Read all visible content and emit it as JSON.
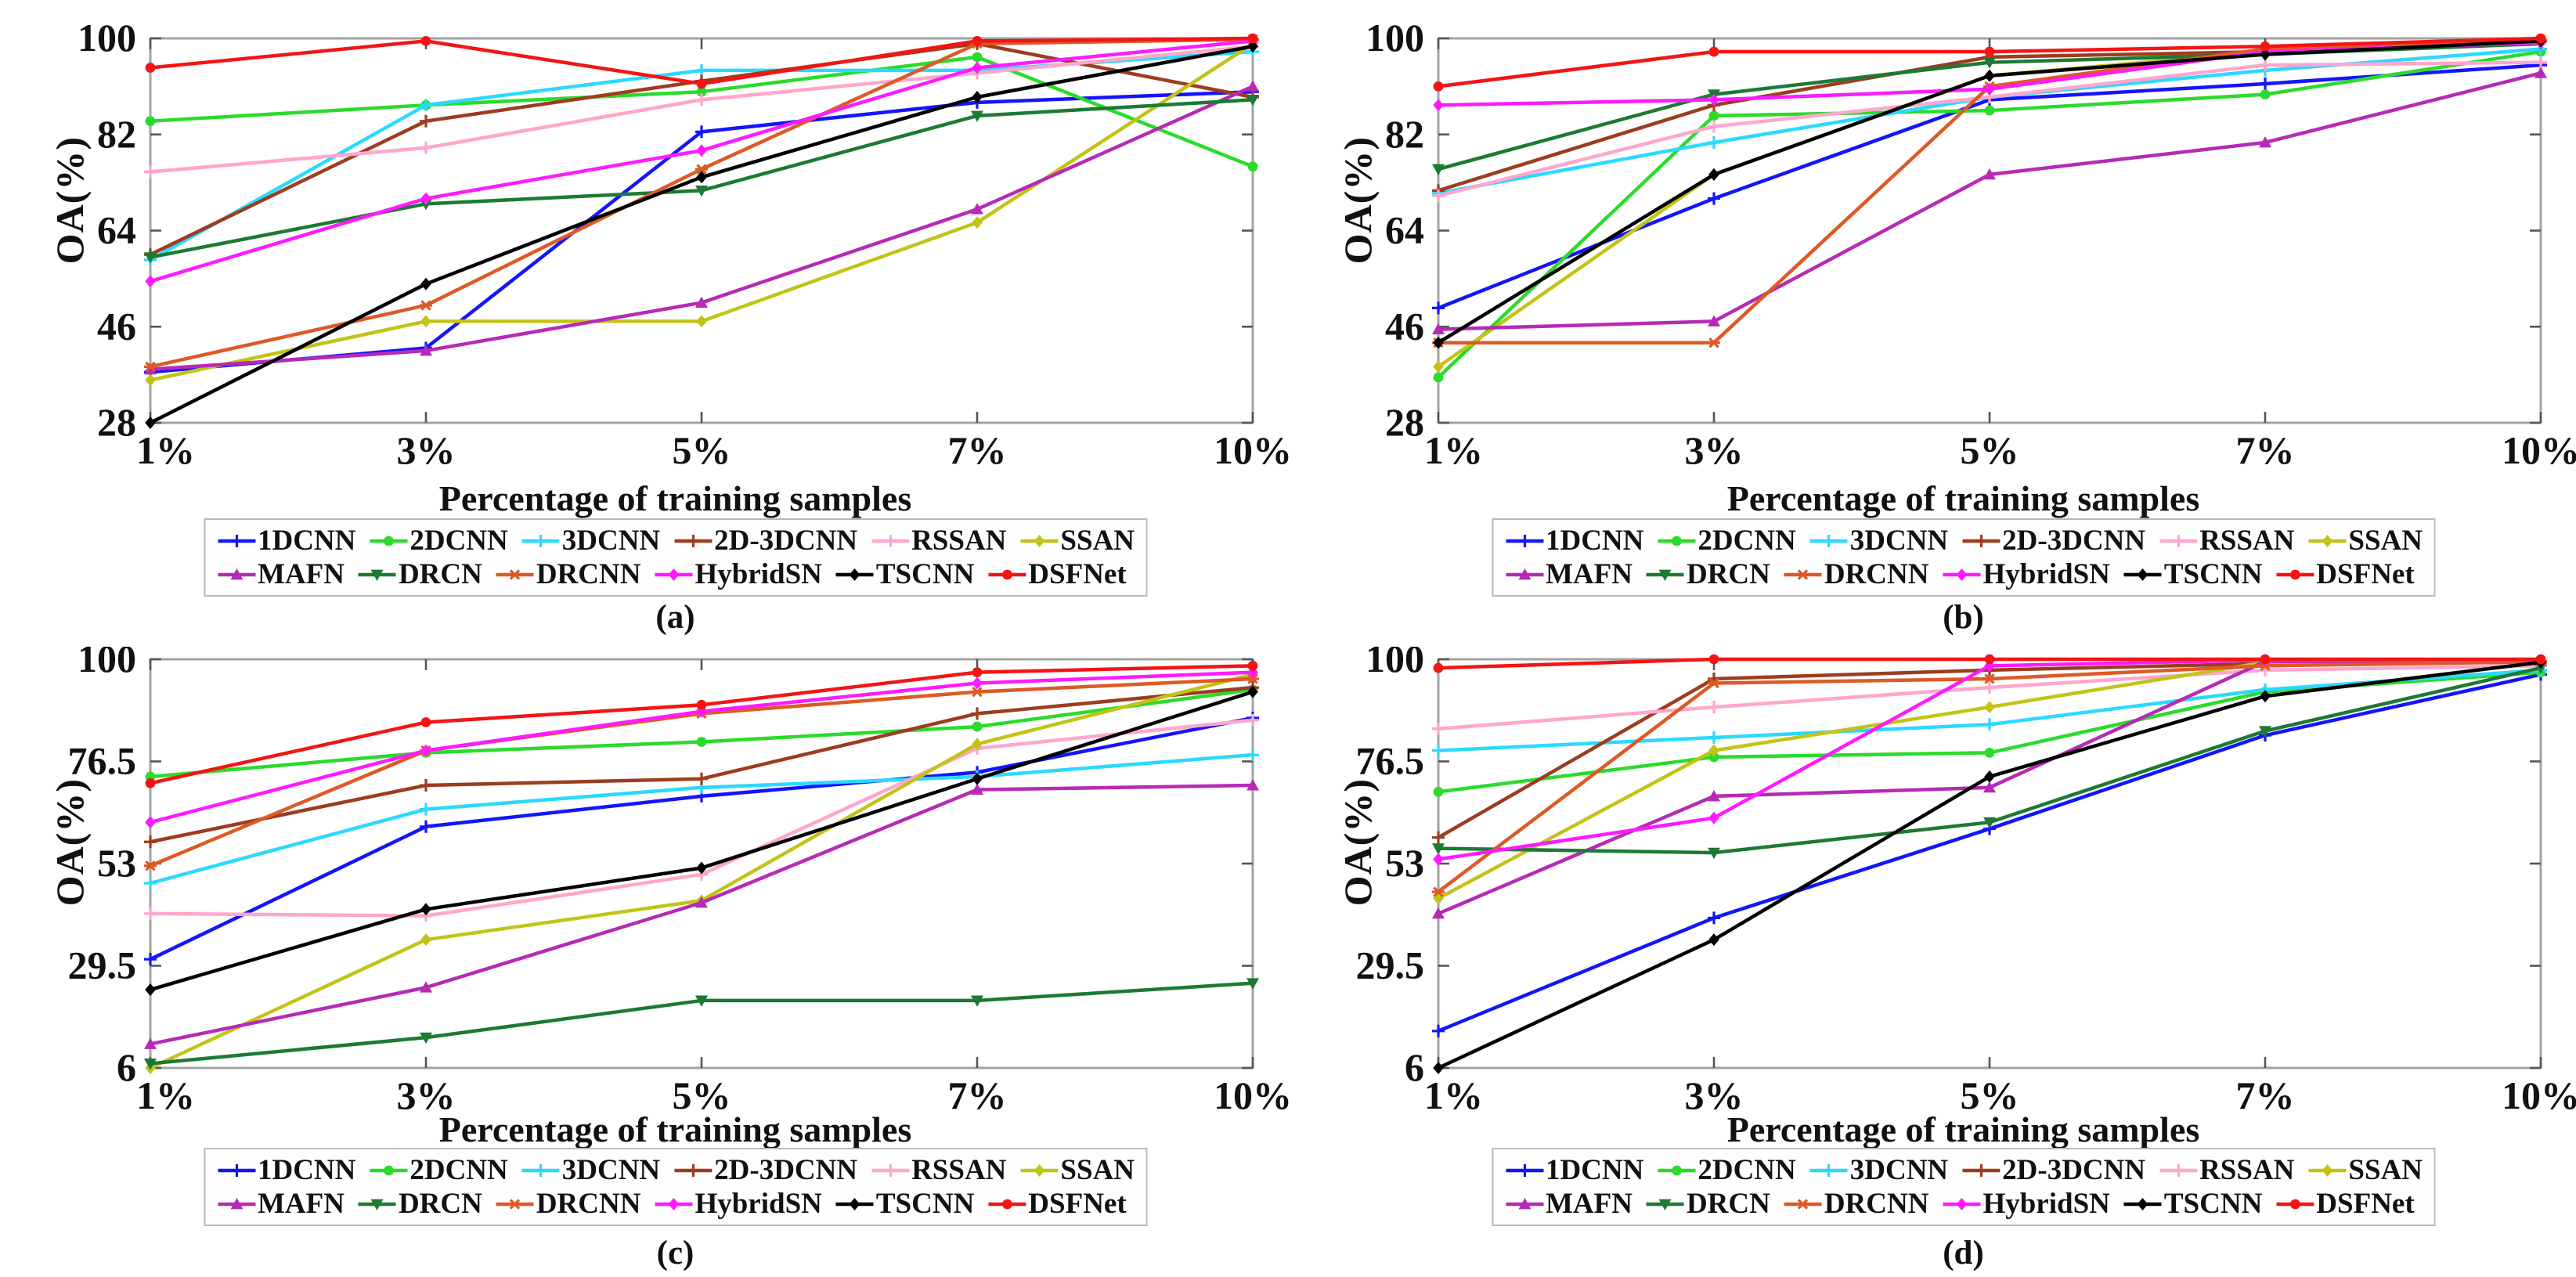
{
  "style": {
    "axis_color": "#a3a3a3",
    "tick_color": "#555555",
    "text_color": "#111111",
    "legend_border_color": "#b9b9b9"
  },
  "series_styles": [
    {
      "name": "1DCNN",
      "color": "#1414ff",
      "marker": "plus"
    },
    {
      "name": "2DCNN",
      "color": "#2bdb2b",
      "marker": "circle"
    },
    {
      "name": "3DCNN",
      "color": "#2bd9ff",
      "marker": "plus"
    },
    {
      "name": "2D-3DCNN",
      "color": "#9c3d20",
      "marker": "plus"
    },
    {
      "name": "RSSAN",
      "color": "#ffa6cd",
      "marker": "plus"
    },
    {
      "name": "SSAN",
      "color": "#c3c317",
      "marker": "diamond"
    },
    {
      "name": "MAFN",
      "color": "#b62ab6",
      "marker": "triangle-up"
    },
    {
      "name": "DRCN",
      "color": "#1d7a33",
      "marker": "triangle-down"
    },
    {
      "name": "DRCNN",
      "color": "#dd5a26",
      "marker": "star"
    },
    {
      "name": "HybridSN",
      "color": "#ff1aff",
      "marker": "diamond"
    },
    {
      "name": "TSCNN",
      "color": "#000000",
      "marker": "diamond"
    },
    {
      "name": "DSFNet",
      "color": "#f51414",
      "marker": "circle"
    }
  ],
  "legend_rows": [
    [
      "1DCNN",
      "2DCNN",
      "3DCNN",
      "2D-3DCNN",
      "RSSAN",
      "SSAN"
    ],
    [
      "MAFN",
      "DRCN",
      "DRCNN",
      "HybridSN",
      "TSCNN",
      "DSFNet"
    ]
  ],
  "chart_data": [
    {
      "panel_label": "(a)",
      "type": "line",
      "title": "",
      "xlabel": "Percentage of training samples",
      "ylabel": "OA(%)",
      "x": [
        "1%",
        "3%",
        "5%",
        "7%",
        "10%"
      ],
      "ylim": [
        28,
        100
      ],
      "yticks": [
        28,
        46,
        64,
        82,
        100
      ],
      "grid": false,
      "legend_position": "below",
      "series": [
        {
          "name": "1DCNN",
          "values": [
            37.5,
            42,
            82.5,
            88,
            90
          ]
        },
        {
          "name": "2DCNN",
          "values": [
            84.5,
            87.5,
            90,
            96.5,
            76
          ]
        },
        {
          "name": "3DCNN",
          "values": [
            58.5,
            87.5,
            94,
            94,
            97.5
          ]
        },
        {
          "name": "2D-3DCNN",
          "values": [
            59.5,
            84.5,
            92,
            99,
            89
          ]
        },
        {
          "name": "RSSAN",
          "values": [
            75,
            79.5,
            88.5,
            93.5,
            98.5
          ]
        },
        {
          "name": "SSAN",
          "values": [
            36,
            47,
            47,
            65.5,
            99
          ]
        },
        {
          "name": "MAFN",
          "values": [
            38,
            41.5,
            50.5,
            68,
            91
          ]
        },
        {
          "name": "DRCN",
          "values": [
            59,
            69,
            71.5,
            85.5,
            88.5
          ]
        },
        {
          "name": "DRCNN",
          "values": [
            38.5,
            50,
            75.5,
            99,
            99.8
          ]
        },
        {
          "name": "HybridSN",
          "values": [
            54.5,
            70,
            79,
            94.5,
            99.5
          ]
        },
        {
          "name": "TSCNN",
          "values": [
            28,
            54,
            74,
            89,
            98.5
          ]
        },
        {
          "name": "DSFNet",
          "values": [
            94.5,
            99.5,
            91.5,
            99.5,
            100
          ]
        }
      ]
    },
    {
      "panel_label": "(b)",
      "type": "line",
      "title": "",
      "xlabel": "Percentage of training samples",
      "ylabel": "OA(%)",
      "x": [
        "1%",
        "3%",
        "5%",
        "7%",
        "10%"
      ],
      "ylim": [
        28,
        100
      ],
      "yticks": [
        28,
        46,
        64,
        82,
        100
      ],
      "grid": false,
      "legend_position": "below",
      "series": [
        {
          "name": "1DCNN",
          "values": [
            49.5,
            70,
            88.5,
            91.5,
            95
          ]
        },
        {
          "name": "2DCNN",
          "values": [
            36.5,
            85.5,
            86.5,
            89.5,
            97.5
          ]
        },
        {
          "name": "3DCNN",
          "values": [
            71,
            80.5,
            89,
            94,
            98
          ]
        },
        {
          "name": "2D-3DCNN",
          "values": [
            71.5,
            87.5,
            96.5,
            97.5,
            99.5
          ]
        },
        {
          "name": "RSSAN",
          "values": [
            70.5,
            83.5,
            89,
            95,
            95.5
          ]
        },
        {
          "name": "SSAN",
          "values": [
            38.5,
            74.5,
            93,
            97.5,
            99.5
          ]
        },
        {
          "name": "MAFN",
          "values": [
            45.5,
            47,
            74.5,
            80.5,
            93.5
          ]
        },
        {
          "name": "DRCN",
          "values": [
            75.5,
            89.5,
            95.5,
            97,
            99
          ]
        },
        {
          "name": "DRCNN",
          "values": [
            43,
            43,
            91,
            98,
            99.7
          ]
        },
        {
          "name": "HybridSN",
          "values": [
            87.5,
            88.5,
            90.5,
            97.5,
            99.2
          ]
        },
        {
          "name": "TSCNN",
          "values": [
            43,
            74.5,
            93,
            97,
            99.5
          ]
        },
        {
          "name": "DSFNet",
          "values": [
            91,
            97.5,
            97.5,
            98.5,
            100
          ]
        }
      ]
    },
    {
      "panel_label": "(c)",
      "type": "line",
      "title": "",
      "xlabel": "Percentage of training samples",
      "ylabel": "OA(%)",
      "x": [
        "1%",
        "3%",
        "5%",
        "7%",
        "10%"
      ],
      "ylim": [
        6,
        100
      ],
      "yticks": [
        6,
        29.5,
        53,
        76.5,
        100
      ],
      "grid": false,
      "legend_position": "below",
      "series": [
        {
          "name": "1DCNN",
          "values": [
            31,
            61.5,
            68.5,
            74,
            86.5
          ]
        },
        {
          "name": "2DCNN",
          "values": [
            73,
            78.5,
            81,
            84.5,
            93
          ]
        },
        {
          "name": "3DCNN",
          "values": [
            48.5,
            65.5,
            70.5,
            73,
            78
          ]
        },
        {
          "name": "2D-3DCNN",
          "values": [
            58,
            71,
            72.5,
            87.5,
            93.5
          ]
        },
        {
          "name": "RSSAN",
          "values": [
            41.5,
            41,
            50.5,
            79.5,
            86
          ]
        },
        {
          "name": "SSAN",
          "values": [
            6,
            35.5,
            44.5,
            80.5,
            96.5
          ]
        },
        {
          "name": "MAFN",
          "values": [
            11.5,
            24.5,
            44,
            70,
            71
          ]
        },
        {
          "name": "DRCN",
          "values": [
            7,
            13,
            21.5,
            21.5,
            25.5
          ]
        },
        {
          "name": "DRCNN",
          "values": [
            52.5,
            79,
            87.5,
            92.5,
            95.5
          ]
        },
        {
          "name": "HybridSN",
          "values": [
            62.5,
            79,
            88,
            94.5,
            97
          ]
        },
        {
          "name": "TSCNN",
          "values": [
            24,
            42.5,
            52,
            72.5,
            92.5
          ]
        },
        {
          "name": "DSFNet",
          "values": [
            71.5,
            85.5,
            89.5,
            97,
            98.5
          ]
        }
      ]
    },
    {
      "panel_label": "(d)",
      "type": "line",
      "title": "",
      "xlabel": "Percentage of training samples",
      "ylabel": "OA(%)",
      "x": [
        "1%",
        "3%",
        "5%",
        "7%",
        "10%"
      ],
      "ylim": [
        6,
        100
      ],
      "yticks": [
        6,
        29.5,
        53,
        76.5,
        100
      ],
      "grid": false,
      "legend_position": "below",
      "series": [
        {
          "name": "1DCNN",
          "values": [
            14.5,
            40.5,
            61,
            82.5,
            96.5
          ]
        },
        {
          "name": "2DCNN",
          "values": [
            69.5,
            77.5,
            78.5,
            92.5,
            97
          ]
        },
        {
          "name": "3DCNN",
          "values": [
            79,
            82,
            85,
            93,
            97.5
          ]
        },
        {
          "name": "2D-3DCNN",
          "values": [
            59,
            95.5,
            97.5,
            99,
            99.5
          ]
        },
        {
          "name": "RSSAN",
          "values": [
            84,
            89,
            93.5,
            97.5,
            98.5
          ]
        },
        {
          "name": "SSAN",
          "values": [
            45,
            79,
            89,
            99.3,
            99.7
          ]
        },
        {
          "name": "MAFN",
          "values": [
            41.5,
            68.5,
            70.5,
            99.5,
            99.6
          ]
        },
        {
          "name": "DRCN",
          "values": [
            56.5,
            55.5,
            62.5,
            83.5,
            98
          ]
        },
        {
          "name": "DRCNN",
          "values": [
            46.5,
            94.5,
            95.5,
            98.5,
            99.4
          ]
        },
        {
          "name": "HybridSN",
          "values": [
            54,
            63.5,
            98.5,
            99.8,
            99.8
          ]
        },
        {
          "name": "TSCNN",
          "values": [
            6,
            35.5,
            73,
            91.5,
            99.3
          ]
        },
        {
          "name": "DSFNet",
          "values": [
            98,
            100,
            100,
            100,
            100
          ]
        }
      ]
    }
  ]
}
